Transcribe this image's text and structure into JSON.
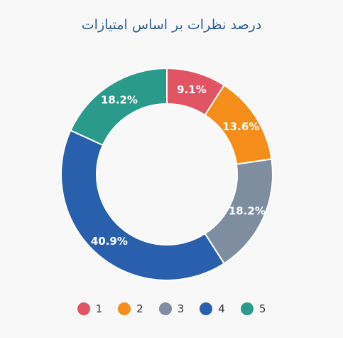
{
  "chart_data": {
    "type": "pie",
    "title": "درصد نظرات بر اساس امتیازات",
    "categories": [
      "1",
      "2",
      "3",
      "4",
      "5"
    ],
    "values": [
      9.1,
      13.6,
      18.2,
      40.9,
      18.2
    ],
    "labels": [
      "9.1%",
      "13.6%",
      "18.2%",
      "40.9%",
      "18.2%"
    ],
    "colors": [
      "#e15464",
      "#f58d1a",
      "#7f8da0",
      "#2860ad",
      "#2a9a8a"
    ],
    "legend": "bottom"
  }
}
